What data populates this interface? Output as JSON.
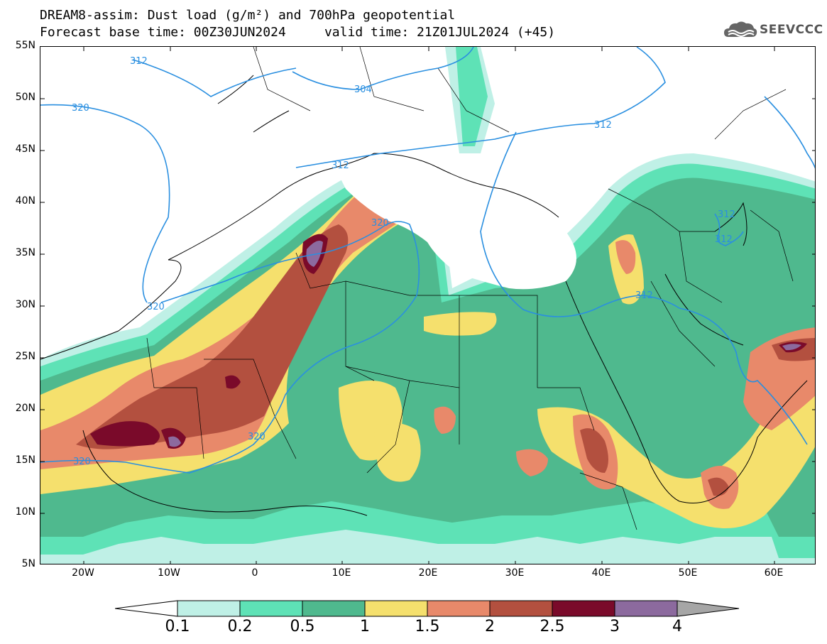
{
  "title": {
    "line1": "DREAM8-assim: Dust load (g/m²) and 700hPa geopotential",
    "line2": "Forecast base time: 00Z30JUN2024     valid time: 21Z01JUL2024 (+45)"
  },
  "logo": {
    "text": "SEEVCCC",
    "icon": "cloud-icon"
  },
  "axes": {
    "lat_labels": [
      "55N",
      "50N",
      "45N",
      "40N",
      "35N",
      "30N",
      "25N",
      "20N",
      "15N",
      "10N",
      "5N"
    ],
    "lon_labels": [
      "20W",
      "10W",
      "0",
      "10E",
      "20E",
      "30E",
      "40E",
      "50E",
      "60E"
    ]
  },
  "contour_labels": [
    "312",
    "304",
    "312",
    "320",
    "312",
    "312",
    "312",
    "320",
    "320",
    "312",
    "320",
    "320"
  ],
  "colorbar": {
    "labels": [
      "0.1",
      "0.2",
      "0.5",
      "1",
      "1.5",
      "2",
      "2.5",
      "3",
      "4"
    ],
    "colors": [
      "#ffffff",
      "#bff0e6",
      "#5ee2b6",
      "#4fb98e",
      "#f5e06d",
      "#e8896a",
      "#b3503f",
      "#7a0a2a",
      "#8c6a9e",
      "#a6a6a6"
    ]
  },
  "colors": {
    "sea": "#ffffff",
    "geopotential_line": "#2a8fe0",
    "borders": "#000000"
  }
}
